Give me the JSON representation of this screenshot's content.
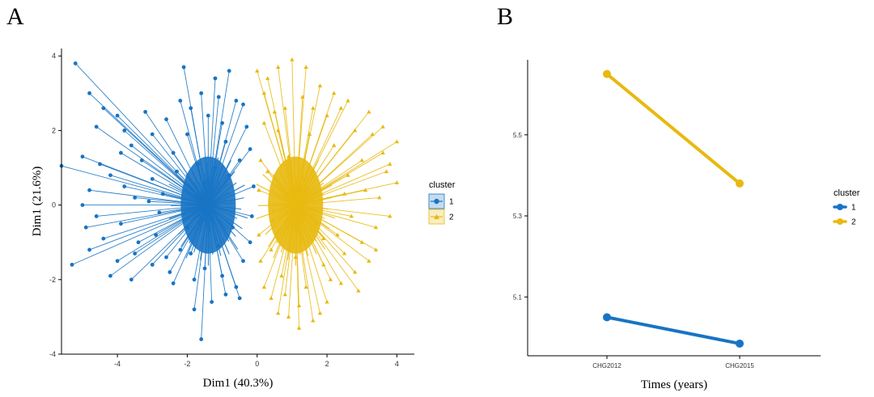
{
  "panels": {
    "a": "A",
    "b": "B"
  },
  "colors": {
    "cluster1": "#1874c4",
    "cluster2": "#e8b90f",
    "axis": "#000000"
  },
  "chart_data": [
    {
      "type": "scatter",
      "title": "",
      "xlabel": "Dim1 (40.3%)",
      "ylabel": "Dim1 (21.6%)",
      "xlim": [
        -5.6,
        4.5
      ],
      "ylim": [
        -4,
        4.2
      ],
      "xticks": [
        -4,
        -2,
        0,
        2,
        4
      ],
      "yticks": [
        -4,
        -2,
        0,
        2,
        4
      ],
      "legend": {
        "title": "cluster",
        "position": "right",
        "entries": [
          "1",
          "2"
        ]
      },
      "centroids": [
        {
          "cluster": "1",
          "x": -1.4,
          "y": 0
        },
        {
          "cluster": "2",
          "x": 1.1,
          "y": 0
        }
      ],
      "series": [
        {
          "name": "1",
          "marker": "circle",
          "points": [
            [
              -5.2,
              3.8
            ],
            [
              -4.8,
              3.0
            ],
            [
              -4.6,
              2.1
            ],
            [
              -4.4,
              2.6
            ],
            [
              -4.0,
              2.4
            ],
            [
              -3.8,
              2.0
            ],
            [
              -3.6,
              1.6
            ],
            [
              -3.2,
              2.5
            ],
            [
              -3.0,
              1.9
            ],
            [
              -2.6,
              2.3
            ],
            [
              -2.1,
              3.7
            ],
            [
              -1.9,
              2.6
            ],
            [
              -1.6,
              3.0
            ],
            [
              -1.2,
              3.4
            ],
            [
              -0.8,
              3.6
            ],
            [
              -0.6,
              2.8
            ],
            [
              -0.4,
              2.7
            ],
            [
              -1.0,
              2.2
            ],
            [
              -2.4,
              1.4
            ],
            [
              -5.6,
              1.05
            ],
            [
              -5.0,
              1.3
            ],
            [
              -4.5,
              1.1
            ],
            [
              -4.2,
              0.8
            ],
            [
              -3.8,
              0.5
            ],
            [
              -4.8,
              0.4
            ],
            [
              -5.0,
              0.0
            ],
            [
              -4.6,
              -0.3
            ],
            [
              -3.5,
              0.2
            ],
            [
              -3.0,
              0.7
            ],
            [
              -2.8,
              -0.2
            ],
            [
              -5.3,
              -1.6
            ],
            [
              -4.8,
              -1.2
            ],
            [
              -4.2,
              -1.9
            ],
            [
              -4.0,
              -1.5
            ],
            [
              -3.5,
              -1.3
            ],
            [
              -3.0,
              -1.6
            ],
            [
              -2.5,
              -1.8
            ],
            [
              -2.2,
              -1.2
            ],
            [
              -1.8,
              -2.0
            ],
            [
              -1.5,
              -1.7
            ],
            [
              -1.8,
              -2.8
            ],
            [
              -1.6,
              -3.6
            ],
            [
              -1.3,
              -2.6
            ],
            [
              -0.9,
              -2.4
            ],
            [
              -0.6,
              -2.2
            ],
            [
              -0.4,
              -1.5
            ],
            [
              -0.2,
              -1.0
            ],
            [
              -0.1,
              0.5
            ],
            [
              -0.2,
              1.5
            ],
            [
              -0.5,
              1.2
            ],
            [
              -2.9,
              -0.8
            ],
            [
              -3.9,
              -0.5
            ],
            [
              -2.3,
              0.9
            ],
            [
              -1.1,
              -1.1
            ],
            [
              -0.8,
              0.8
            ],
            [
              -2.0,
              -0.6
            ],
            [
              -1.7,
              1.1
            ],
            [
              -3.3,
              1.2
            ],
            [
              -4.4,
              -0.9
            ],
            [
              -2.7,
              0.3
            ],
            [
              -0.3,
              2.1
            ],
            [
              -1.4,
              2.4
            ],
            [
              -2.2,
              2.8
            ],
            [
              -3.4,
              -1.0
            ],
            [
              -1.0,
              -1.9
            ],
            [
              -0.7,
              -0.6
            ],
            [
              -2.6,
              -1.4
            ],
            [
              -3.9,
              1.4
            ],
            [
              -1.5,
              0.6
            ],
            [
              -0.9,
              1.7
            ],
            [
              -2.0,
              1.9
            ],
            [
              -4.9,
              -0.6
            ],
            [
              -0.5,
              -2.5
            ],
            [
              -1.9,
              -1.3
            ],
            [
              -1.2,
              1.0
            ],
            [
              -3.1,
              0.1
            ],
            [
              -2.4,
              -2.1
            ],
            [
              -0.15,
              -0.3
            ],
            [
              -1.1,
              2.9
            ],
            [
              -3.6,
              -2.0
            ]
          ]
        },
        {
          "name": "2",
          "marker": "triangle",
          "points": [
            [
              0.0,
              3.6
            ],
            [
              0.3,
              3.4
            ],
            [
              0.6,
              3.7
            ],
            [
              1.0,
              3.9
            ],
            [
              1.4,
              3.7
            ],
            [
              1.8,
              3.2
            ],
            [
              2.2,
              3.0
            ],
            [
              2.6,
              2.8
            ],
            [
              3.2,
              2.5
            ],
            [
              3.6,
              2.1
            ],
            [
              4.0,
              1.7
            ],
            [
              3.6,
              1.4
            ],
            [
              3.8,
              1.1
            ],
            [
              4.0,
              0.6
            ],
            [
              3.5,
              0.2
            ],
            [
              3.8,
              -0.3
            ],
            [
              3.4,
              -0.6
            ],
            [
              3.0,
              -1.0
            ],
            [
              3.2,
              -1.5
            ],
            [
              2.8,
              -1.8
            ],
            [
              2.4,
              -2.1
            ],
            [
              2.0,
              -2.6
            ],
            [
              1.8,
              -2.9
            ],
            [
              1.6,
              -3.1
            ],
            [
              1.2,
              -3.3
            ],
            [
              0.9,
              -3.0
            ],
            [
              0.6,
              -2.9
            ],
            [
              0.4,
              -2.5
            ],
            [
              0.2,
              -2.2
            ],
            [
              0.1,
              -1.5
            ],
            [
              0.05,
              -0.8
            ],
            [
              0.05,
              0.4
            ],
            [
              0.1,
              1.2
            ],
            [
              0.2,
              2.2
            ],
            [
              0.5,
              2.5
            ],
            [
              0.8,
              2.6
            ],
            [
              1.3,
              2.9
            ],
            [
              2.0,
              2.4
            ],
            [
              2.8,
              2.0
            ],
            [
              3.0,
              1.2
            ],
            [
              2.6,
              0.8
            ],
            [
              3.1,
              0.4
            ],
            [
              2.7,
              -0.3
            ],
            [
              2.3,
              -0.8
            ],
            [
              2.5,
              -1.3
            ],
            [
              1.9,
              -1.6
            ],
            [
              1.4,
              -2.2
            ],
            [
              0.7,
              -1.9
            ],
            [
              0.4,
              -1.2
            ],
            [
              0.3,
              0.9
            ],
            [
              1.5,
              1.9
            ],
            [
              2.2,
              1.6
            ],
            [
              1.9,
              -0.9
            ],
            [
              1.1,
              -1.4
            ],
            [
              0.9,
              1.3
            ],
            [
              2.9,
              -2.3
            ],
            [
              3.4,
              -1.2
            ],
            [
              1.6,
              2.6
            ],
            [
              0.8,
              -2.4
            ],
            [
              2.4,
              2.6
            ],
            [
              3.3,
              1.9
            ],
            [
              0.2,
              3.0
            ],
            [
              1.2,
              -2.7
            ],
            [
              2.1,
              -2.0
            ],
            [
              3.7,
              0.9
            ],
            [
              0.6,
              2.0
            ],
            [
              1.7,
              -0.5
            ],
            [
              2.5,
              0.3
            ],
            [
              0.45,
              -0.4
            ],
            [
              1.3,
              0.7
            ]
          ]
        }
      ]
    },
    {
      "type": "line",
      "title": "",
      "xlabel": "Times (years)",
      "ylabel": "",
      "categories": [
        "CHG2012",
        "CHG2015"
      ],
      "yticks": [
        "5.1",
        "5.3",
        "5.5"
      ],
      "ylim": [
        4.955,
        5.685
      ],
      "legend": {
        "title": "cluster",
        "position": "right",
        "entries": [
          "1",
          "2"
        ]
      },
      "series": [
        {
          "name": "1",
          "values": [
            5.05,
            4.985
          ]
        },
        {
          "name": "2",
          "values": [
            5.65,
            5.38
          ]
        }
      ]
    }
  ]
}
